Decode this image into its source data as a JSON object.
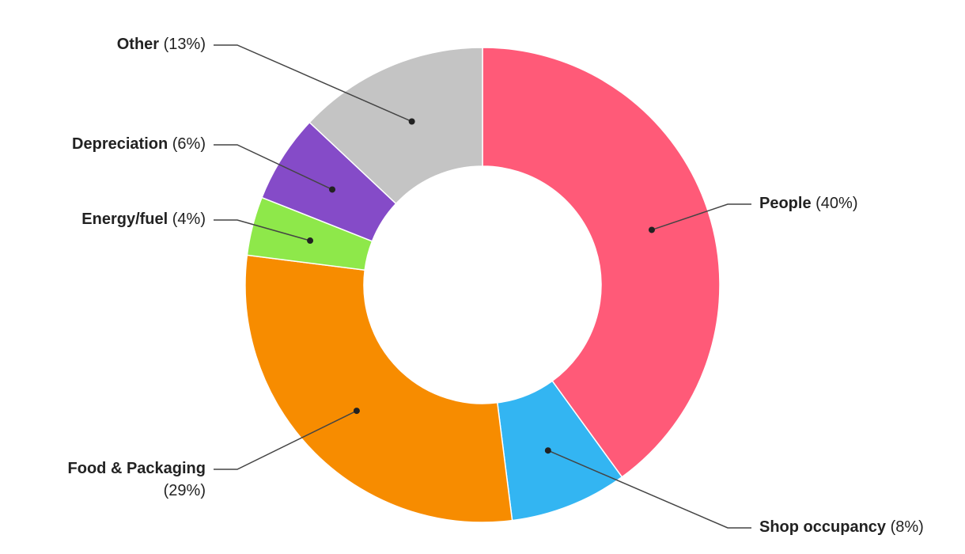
{
  "chart_data": {
    "type": "pie",
    "donut": true,
    "categories": [
      "People",
      "Shop occupancy",
      "Food & Packaging",
      "Energy/fuel",
      "Depreciation",
      "Other"
    ],
    "values": [
      40,
      8,
      29,
      4,
      6,
      13
    ],
    "value_labels": [
      "(40%)",
      "(8%)",
      "(29%)",
      "(4%)",
      "(6%)",
      "(13%)"
    ],
    "colors": [
      "#ff5a78",
      "#33b5f2",
      "#f78c00",
      "#8ee84a",
      "#854bc8",
      "#c4c4c4"
    ]
  }
}
